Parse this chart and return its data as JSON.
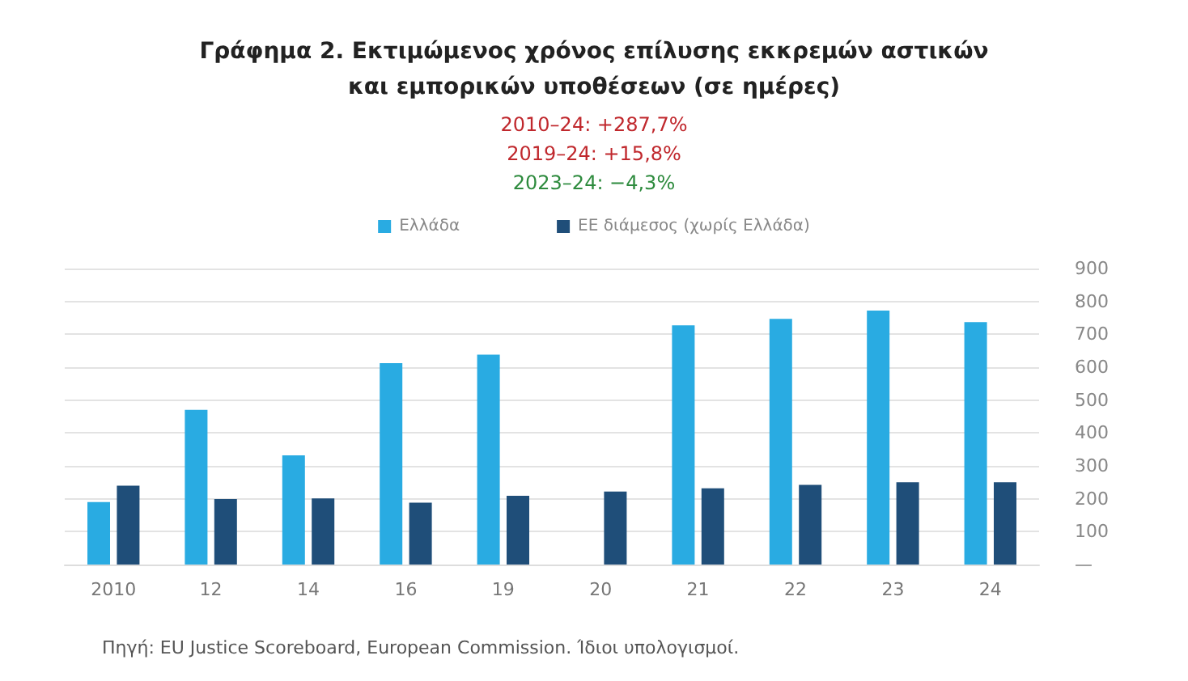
{
  "chart_data": {
    "type": "bar",
    "title": "Γράφημα 2. Εκτιμώμενος χρόνος επίλυσης εκκρεμών αστικών\nκαι εμπορικών υποθέσεων (σε ημέρες)",
    "annotations": [
      "2010–24: +287,7%",
      "2019–24: +15,8%",
      "2023–24: −4,3%",
      "Πηγή: EU Justice Scoreboard, European Commission. Ίδιοι υπολογισμοί."
    ],
    "categories": [
      "2010",
      "12",
      "14",
      "16",
      "19",
      "20",
      "21",
      "22",
      "23",
      "24"
    ],
    "series": [
      {
        "name": "Ελλάδα",
        "color": "#29abe2",
        "values": [
          190,
          470,
          332,
          612,
          638,
          null,
          727,
          747,
          772,
          737
        ]
      },
      {
        "name": "ΕΕ διάμεσος (χωρίς Ελλάδα)",
        "color": "#1f4e79",
        "values": [
          240,
          199,
          201,
          188,
          209,
          222,
          232,
          242,
          250,
          250
        ]
      }
    ],
    "ylim": [
      0,
      900
    ],
    "yticks": [
      {
        "value": 0,
        "label": "—"
      },
      100,
      200,
      300,
      400,
      500,
      600,
      700,
      800,
      900
    ],
    "grid": "y",
    "legend": "top"
  }
}
